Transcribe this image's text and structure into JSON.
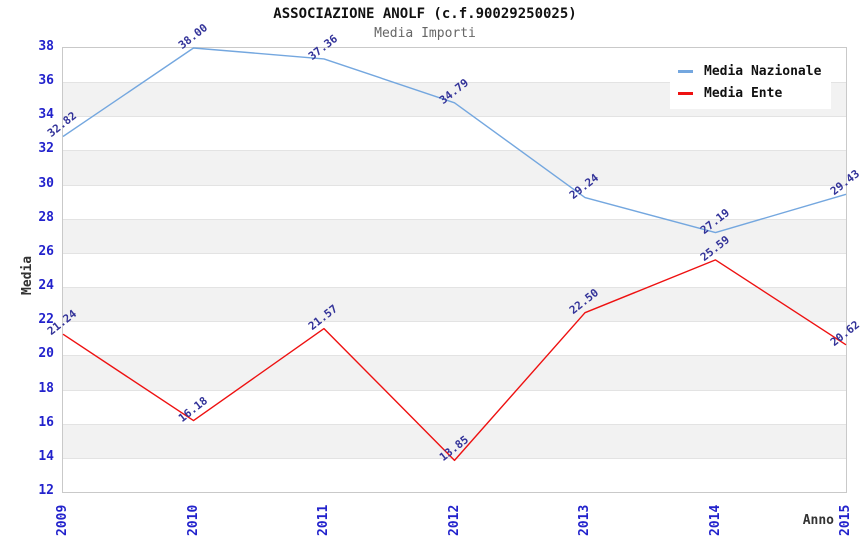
{
  "header": {
    "title": "ASSOCIAZIONE ANOLF (c.f.90029250025)",
    "subtitle": "Media Importi"
  },
  "chart_data": {
    "type": "line",
    "title": "ASSOCIAZIONE ANOLF (c.f.90029250025)",
    "subtitle": "Media Importi",
    "xlabel": "Anno",
    "ylabel": "Media",
    "x": [
      2009,
      2010,
      2011,
      2012,
      2013,
      2014,
      2015
    ],
    "xticks": [
      "2009",
      "2010",
      "2011",
      "2012",
      "2013",
      "2014",
      "2015"
    ],
    "yticks": [
      38,
      36,
      34,
      32,
      30,
      28,
      26,
      24,
      22,
      20,
      18,
      16,
      14,
      12
    ],
    "ylim": [
      12,
      38
    ],
    "ytick_step": 2,
    "grid": true,
    "band_fill": "#f2f2f2",
    "axis_tick_color": "#2222cc",
    "value_label_color": "#333399",
    "legend_position": "top-right",
    "series": [
      {
        "name": "Media Nazionale",
        "color": "#74a7df",
        "values": [
          32.82,
          38.0,
          37.36,
          34.79,
          29.24,
          27.19,
          29.43
        ],
        "labels": [
          "32.82",
          "38.00",
          "37.36",
          "34.79",
          "29.24",
          "27.19",
          "29.43"
        ]
      },
      {
        "name": "Media Ente",
        "color": "#ee1111",
        "values": [
          21.24,
          16.18,
          21.57,
          13.85,
          22.5,
          25.59,
          20.62
        ],
        "labels": [
          "21.24",
          "16.18",
          "21.57",
          "13.85",
          "22.50",
          "25.59",
          "20.62"
        ]
      }
    ]
  }
}
